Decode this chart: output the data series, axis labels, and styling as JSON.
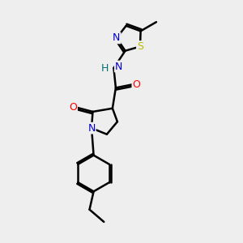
{
  "background_color": "#eeeeee",
  "atom_colors": {
    "C": "#000000",
    "N": "#0000cc",
    "O": "#ff0000",
    "S": "#bbbb00",
    "H": "#007070"
  },
  "bond_color": "#000000",
  "bond_width": 1.8,
  "figsize": [
    3.0,
    3.0
  ],
  "dpi": 100
}
